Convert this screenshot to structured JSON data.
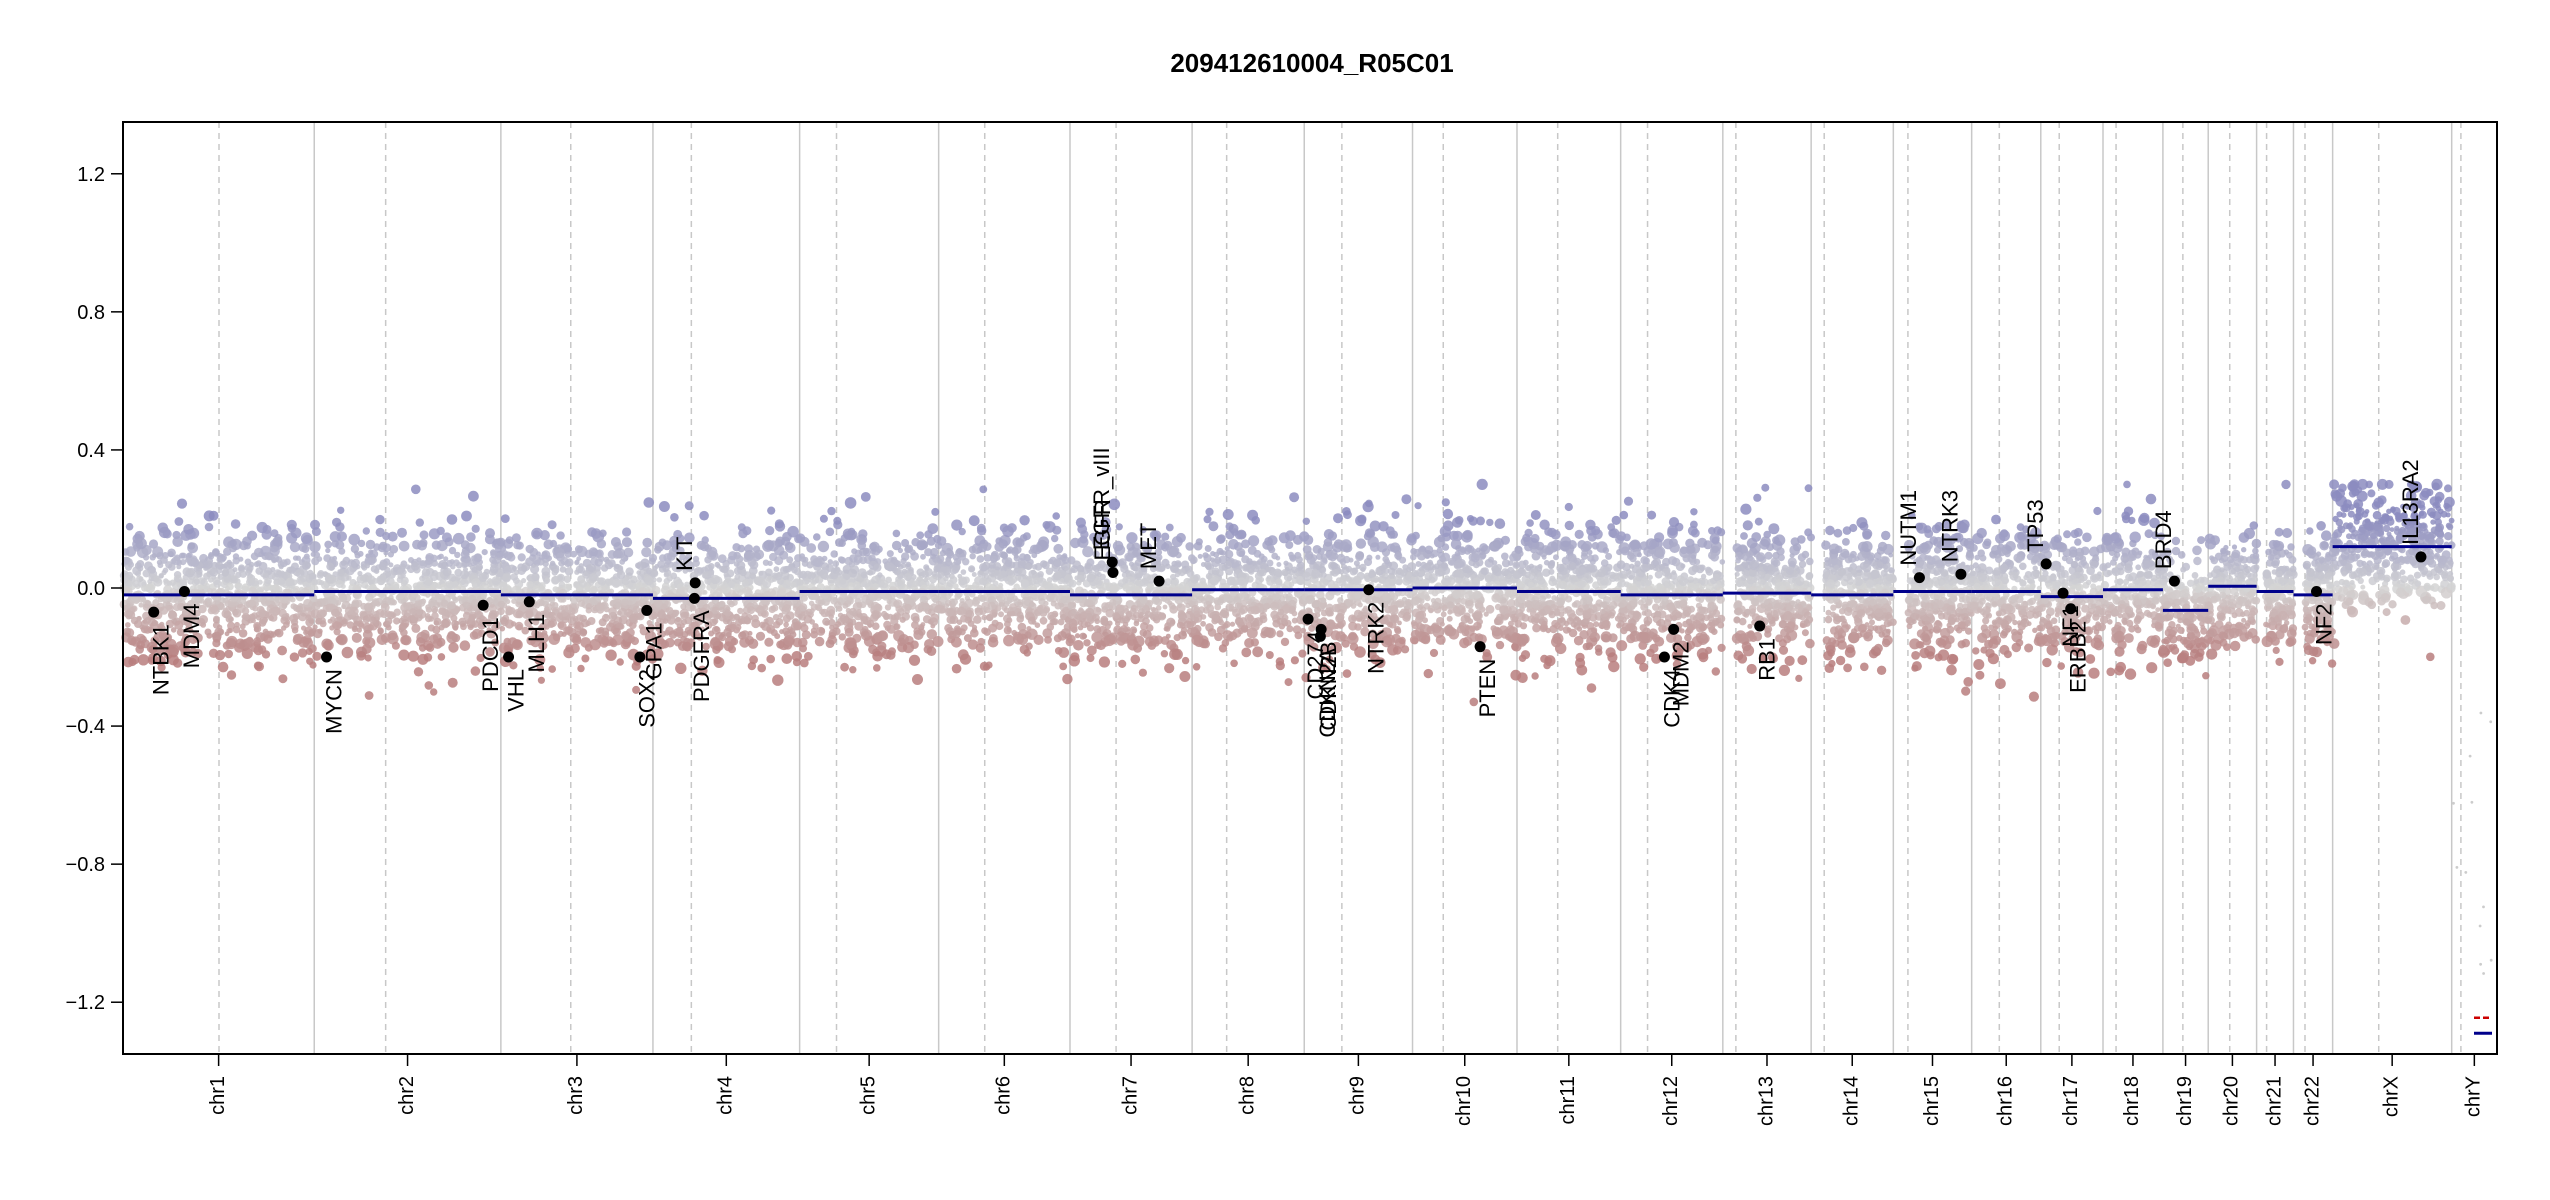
{
  "chart_data": {
    "type": "scatter",
    "title": "209412610004_R05C01",
    "xlabel": "",
    "ylabel": "",
    "ylim": [
      -1.35,
      1.35
    ],
    "yticks": [
      -1.2,
      -0.8,
      -0.4,
      0.0,
      0.4,
      0.8,
      1.2
    ],
    "ytick_labels": [
      "−1.2",
      "−0.8",
      "−0.4",
      "0.0",
      "0.4",
      "0.8",
      "1.2"
    ],
    "grid": false,
    "colors": {
      "gain": "#8c8cbf",
      "loss": "#b87e7e",
      "neutral": "#d4d4d4",
      "segment": "#00008b",
      "gene_dot": "#000000",
      "chrom_boundary": "#c8c8c8",
      "centromere": "#c8c8c8",
      "legend_red": "#cc0000",
      "legend_blue": "#00008b"
    },
    "chromosomes": [
      {
        "name": "chr1",
        "length": 249
      },
      {
        "name": "chr2",
        "length": 243
      },
      {
        "name": "chr3",
        "length": 198
      },
      {
        "name": "chr4",
        "length": 191
      },
      {
        "name": "chr5",
        "length": 181
      },
      {
        "name": "chr6",
        "length": 171
      },
      {
        "name": "chr7",
        "length": 159
      },
      {
        "name": "chr8",
        "length": 146
      },
      {
        "name": "chr9",
        "length": 141
      },
      {
        "name": "chr10",
        "length": 136
      },
      {
        "name": "chr11",
        "length": 135
      },
      {
        "name": "chr12",
        "length": 133
      },
      {
        "name": "chr13",
        "length": 115
      },
      {
        "name": "chr14",
        "length": 107
      },
      {
        "name": "chr15",
        "length": 102
      },
      {
        "name": "chr16",
        "length": 90
      },
      {
        "name": "chr17",
        "length": 81
      },
      {
        "name": "chr18",
        "length": 78
      },
      {
        "name": "chr19",
        "length": 59
      },
      {
        "name": "chr20",
        "length": 63
      },
      {
        "name": "chr21",
        "length": 48
      },
      {
        "name": "chr22",
        "length": 51
      },
      {
        "name": "chrX",
        "length": 155
      },
      {
        "name": "chrY",
        "length": 59
      }
    ],
    "segments": [
      {
        "chr": "chr1",
        "start": 0,
        "end": 249,
        "value": -0.02
      },
      {
        "chr": "chr2",
        "start": 0,
        "end": 243,
        "value": -0.01
      },
      {
        "chr": "chr3",
        "start": 0,
        "end": 198,
        "value": -0.02
      },
      {
        "chr": "chr4",
        "start": 0,
        "end": 191,
        "value": -0.03
      },
      {
        "chr": "chr5",
        "start": 0,
        "end": 181,
        "value": -0.01
      },
      {
        "chr": "chr6",
        "start": 0,
        "end": 171,
        "value": -0.01
      },
      {
        "chr": "chr7",
        "start": 0,
        "end": 159,
        "value": -0.02
      },
      {
        "chr": "chr8",
        "start": 0,
        "end": 146,
        "value": -0.005
      },
      {
        "chr": "chr9",
        "start": 0,
        "end": 141,
        "value": -0.005
      },
      {
        "chr": "chr10",
        "start": 0,
        "end": 136,
        "value": 0.0
      },
      {
        "chr": "chr11",
        "start": 0,
        "end": 135,
        "value": -0.01
      },
      {
        "chr": "chr12",
        "start": 0,
        "end": 133,
        "value": -0.02
      },
      {
        "chr": "chr13",
        "start": 0,
        "end": 115,
        "value": -0.015
      },
      {
        "chr": "chr14",
        "start": 0,
        "end": 107,
        "value": -0.02
      },
      {
        "chr": "chr15",
        "start": 0,
        "end": 102,
        "value": -0.01
      },
      {
        "chr": "chr16",
        "start": 0,
        "end": 90,
        "value": -0.01
      },
      {
        "chr": "chr17",
        "start": 0,
        "end": 81,
        "value": -0.025
      },
      {
        "chr": "chr18",
        "start": 0,
        "end": 78,
        "value": -0.005
      },
      {
        "chr": "chr19",
        "start": 0,
        "end": 59,
        "value": -0.065
      },
      {
        "chr": "chr20",
        "start": 0,
        "end": 63,
        "value": 0.005
      },
      {
        "chr": "chr21",
        "start": 0,
        "end": 48,
        "value": -0.01
      },
      {
        "chr": "chr22",
        "start": 0,
        "end": 51,
        "value": -0.02
      },
      {
        "chr": "chrX",
        "start": 0,
        "end": 155,
        "value": 0.12
      }
    ],
    "genes": [
      {
        "name": "NTBK1",
        "chr": "chr1",
        "pos": 40,
        "value": -0.07
      },
      {
        "name": "MDM4",
        "chr": "chr1",
        "pos": 80,
        "value": -0.01
      },
      {
        "name": "MYCN",
        "chr": "chr2",
        "pos": 16,
        "value": -0.2
      },
      {
        "name": "PDCD1",
        "chr": "chr2",
        "pos": 220,
        "value": -0.05
      },
      {
        "name": "VHL",
        "chr": "chr3",
        "pos": 10,
        "value": -0.2
      },
      {
        "name": "MLH1",
        "chr": "chr3",
        "pos": 37,
        "value": -0.04
      },
      {
        "name": "SOX2",
        "chr": "chr3",
        "pos": 181,
        "value": -0.2
      },
      {
        "name": "GPA1",
        "chr": "chr3",
        "pos": 190,
        "value": -0.065
      },
      {
        "name": "KIT",
        "chr": "chr4",
        "pos": 55,
        "value": 0.015
      },
      {
        "name": "PDGFRA",
        "chr": "chr4",
        "pos": 54,
        "value": -0.03
      },
      {
        "name": "EGFR_vIII",
        "chr": "chr7",
        "pos": 55,
        "value": 0.075
      },
      {
        "name": "EGFR",
        "chr": "chr7",
        "pos": 56,
        "value": 0.045
      },
      {
        "name": "MET",
        "chr": "chr7",
        "pos": 116,
        "value": 0.02
      },
      {
        "name": "CD274",
        "chr": "chr9",
        "pos": 5,
        "value": -0.09
      },
      {
        "name": "CDKN2A",
        "chr": "chr9",
        "pos": 21,
        "value": -0.14
      },
      {
        "name": "CDKN2B",
        "chr": "chr9",
        "pos": 22,
        "value": -0.12
      },
      {
        "name": "NTRK2",
        "chr": "chr9",
        "pos": 84,
        "value": -0.005
      },
      {
        "name": "PTEN",
        "chr": "chr10",
        "pos": 88,
        "value": -0.17
      },
      {
        "name": "CDK4",
        "chr": "chr12",
        "pos": 57,
        "value": -0.2
      },
      {
        "name": "MDM2",
        "chr": "chr12",
        "pos": 69,
        "value": -0.12
      },
      {
        "name": "RB1",
        "chr": "chr13",
        "pos": 48,
        "value": -0.11
      },
      {
        "name": "NUTM1",
        "chr": "chr15",
        "pos": 34,
        "value": 0.03
      },
      {
        "name": "NTRK3",
        "chr": "chr15",
        "pos": 88,
        "value": 0.04
      },
      {
        "name": "TP53",
        "chr": "chr17",
        "pos": 7,
        "value": 0.07
      },
      {
        "name": "NF1",
        "chr": "chr17",
        "pos": 29,
        "value": -0.015
      },
      {
        "name": "ERBB2",
        "chr": "chr17",
        "pos": 39,
        "value": -0.06
      },
      {
        "name": "BRD4",
        "chr": "chr19",
        "pos": 15,
        "value": 0.02
      },
      {
        "name": "NF2",
        "chr": "chr22",
        "pos": 30,
        "value": -0.01
      },
      {
        "name": "IL13RA2",
        "chr": "chrX",
        "pos": 115,
        "value": 0.09
      }
    ],
    "centromeres": [
      {
        "chr": "chr1",
        "pos": 125
      },
      {
        "chr": "chr2",
        "pos": 93
      },
      {
        "chr": "chr3",
        "pos": 91
      },
      {
        "chr": "chr4",
        "pos": 50
      },
      {
        "chr": "chr5",
        "pos": 48
      },
      {
        "chr": "chr6",
        "pos": 60
      },
      {
        "chr": "chr7",
        "pos": 60
      },
      {
        "chr": "chr8",
        "pos": 45
      },
      {
        "chr": "chr9",
        "pos": 49
      },
      {
        "chr": "chr10",
        "pos": 40
      },
      {
        "chr": "chr11",
        "pos": 53
      },
      {
        "chr": "chr12",
        "pos": 35
      },
      {
        "chr": "chr13",
        "pos": 17
      },
      {
        "chr": "chr14",
        "pos": 17
      },
      {
        "chr": "chr15",
        "pos": 19
      },
      {
        "chr": "chr16",
        "pos": 36
      },
      {
        "chr": "chr17",
        "pos": 24
      },
      {
        "chr": "chr18",
        "pos": 17
      },
      {
        "chr": "chr19",
        "pos": 26
      },
      {
        "chr": "chr20",
        "pos": 28
      },
      {
        "chr": "chr21",
        "pos": 13
      },
      {
        "chr": "chr22",
        "pos": 15
      },
      {
        "chr": "chrX",
        "pos": 60
      },
      {
        "chr": "chrY",
        "pos": 12
      }
    ]
  }
}
